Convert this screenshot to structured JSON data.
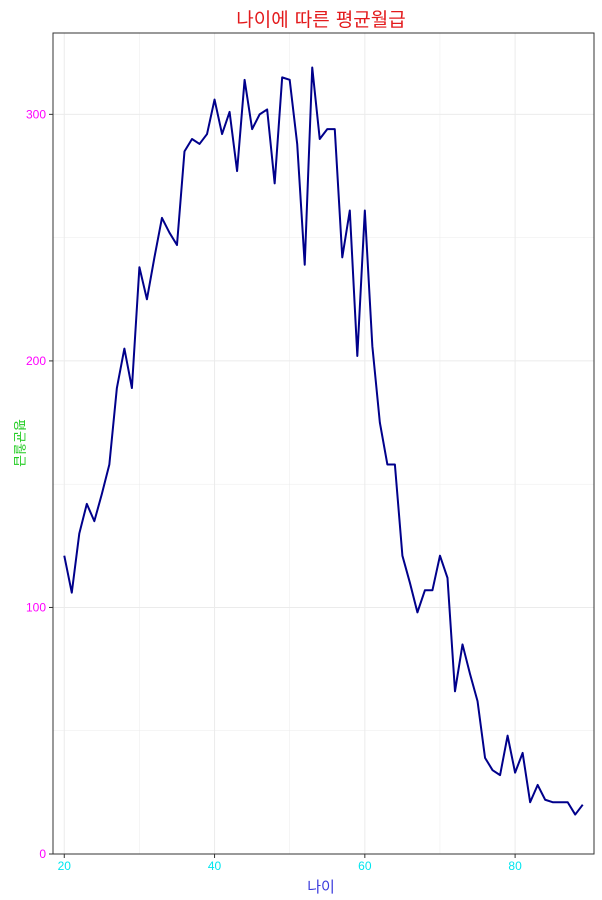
{
  "colors": {
    "title": "#e31a1c",
    "xlabel": "#3b3bdc",
    "ylabel": "#22cc22",
    "x_ticks": "#00e5ee",
    "y_ticks": "#ff00ff",
    "line": "#00008b",
    "grid": "#ebebeb",
    "panel_border": "#333333"
  },
  "chart_data": {
    "type": "line",
    "title": "나이에 따른 평균월급",
    "xlabel": "나이",
    "ylabel": "평균월급",
    "xlim": [
      18.5,
      90.5
    ],
    "ylim": [
      0,
      333
    ],
    "x_ticks": [
      20,
      40,
      60,
      80
    ],
    "y_ticks": [
      0,
      100,
      200,
      300
    ],
    "x_tick_labels": [
      "20",
      "40",
      "60",
      "80"
    ],
    "y_tick_labels": [
      "0",
      "100",
      "200",
      "300"
    ],
    "grid": true,
    "series": [
      {
        "x": [
          20,
          21,
          22,
          23,
          24,
          25,
          26,
          27,
          28,
          29,
          30,
          31,
          32,
          33,
          34,
          35,
          36,
          37,
          38,
          39,
          40,
          41,
          42,
          43,
          44,
          45,
          46,
          47,
          48,
          49,
          50,
          51,
          52,
          53,
          54,
          55,
          56,
          57,
          58,
          59,
          60,
          61,
          62,
          63,
          64,
          65,
          66,
          67,
          68,
          69,
          70,
          71,
          72,
          73,
          74,
          75,
          76,
          77,
          78,
          79,
          80,
          81,
          82,
          83,
          84,
          85,
          86,
          87,
          88,
          89
        ],
        "y": [
          121,
          106,
          130,
          142,
          135,
          146,
          158,
          189,
          205,
          189,
          238,
          225,
          242,
          258,
          252,
          247,
          285,
          290,
          288,
          292,
          306,
          292,
          301,
          277,
          314,
          294,
          300,
          302,
          272,
          315,
          314,
          288,
          239,
          319,
          290,
          294,
          294,
          242,
          261,
          202,
          261,
          206,
          175,
          158,
          158,
          121,
          110,
          98,
          107,
          107,
          121,
          112,
          66,
          85,
          73,
          62,
          39,
          34,
          32,
          48,
          33,
          41,
          21,
          28,
          22,
          21,
          21,
          21,
          16,
          20
        ]
      }
    ]
  }
}
